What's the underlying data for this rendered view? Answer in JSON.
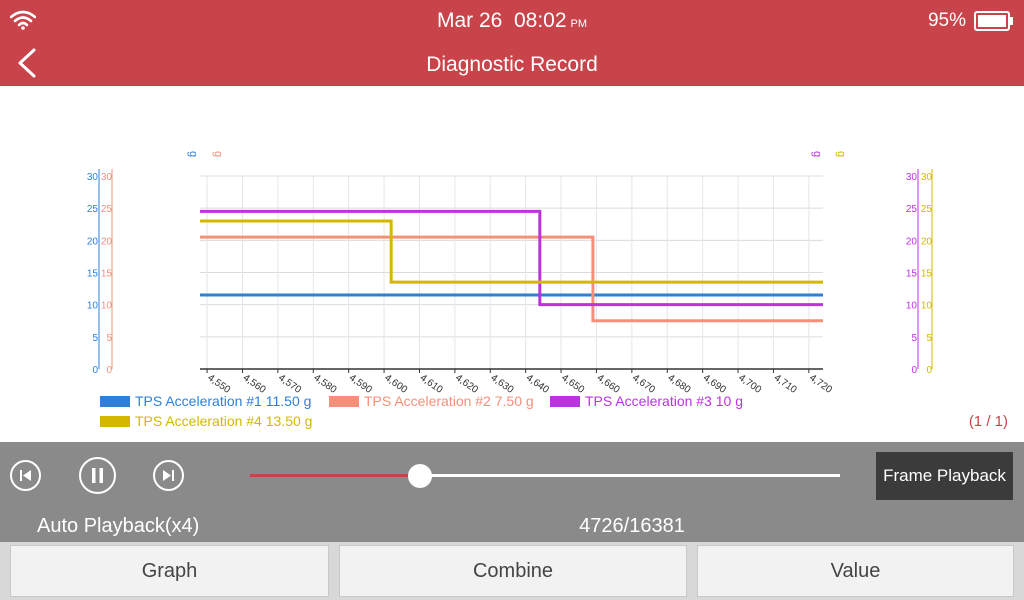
{
  "status_bar": {
    "date": "Mar 26",
    "time": "08:02",
    "ampm": "PM",
    "battery": "95%",
    "wifi_icon": "wifi-icon",
    "battery_icon": "battery-icon"
  },
  "header": {
    "title": "Diagnostic Record",
    "back_icon": "chevron-left-icon"
  },
  "chart_data": {
    "type": "line",
    "ylim": [
      0,
      30
    ],
    "xlim": [
      4548,
      4724
    ],
    "y_ticks": [
      0,
      5,
      10,
      15,
      20,
      25,
      30
    ],
    "x_ticks": [
      4550,
      4560,
      4570,
      4580,
      4590,
      4600,
      4610,
      4620,
      4630,
      4640,
      4650,
      4660,
      4670,
      4680,
      4690,
      4700,
      4710,
      4720
    ],
    "x_tick_labels": [
      "4,550",
      "4,560",
      "4,570",
      "4,580",
      "4,590",
      "4,600",
      "4,610",
      "4,620",
      "4,630",
      "4,640",
      "4,650",
      "4,660",
      "4,670",
      "4,680",
      "4,690",
      "4,700",
      "4,710",
      "4,720"
    ],
    "unit": "g",
    "grid": true,
    "series": [
      {
        "name": "TPS Acceleration #1",
        "value_label": "11.50 g",
        "color": "#2f7fd8",
        "x": [
          4548,
          4724
        ],
        "y": [
          11.5,
          11.5
        ]
      },
      {
        "name": "TPS Acceleration #2",
        "value_label": "7.50 g",
        "color": "#f4907a",
        "x": [
          4548,
          4659,
          4659,
          4724
        ],
        "y": [
          20.5,
          20.5,
          7.5,
          7.5
        ]
      },
      {
        "name": "TPS Acceleration #3",
        "value_label": "10 g",
        "color": "#bb33e0",
        "x": [
          4548,
          4644,
          4644,
          4724
        ],
        "y": [
          24.5,
          24.5,
          10,
          10
        ]
      },
      {
        "name": "TPS Acceleration #4",
        "value_label": "13.50 g",
        "color": "#d4b800",
        "x": [
          4548,
          4602,
          4602,
          4724
        ],
        "y": [
          23,
          23,
          13.5,
          13.5
        ]
      }
    ],
    "axes": {
      "left": [
        {
          "series": 0,
          "color": "#2f7fd8"
        },
        {
          "series": 1,
          "color": "#f4907a"
        }
      ],
      "right": [
        {
          "series": 2,
          "color": "#bb33e0"
        },
        {
          "series": 3,
          "color": "#d4b800"
        }
      ]
    }
  },
  "page_indicator": "(1 / 1)",
  "playback": {
    "prev_icon": "skip-previous-icon",
    "pause_icon": "pause-icon",
    "next_icon": "skip-next-icon",
    "progress": 0.2885,
    "frame_button": "Frame Playback",
    "auto_label": "Auto Playback(x4)",
    "counter": "4726/16381"
  },
  "tabs": [
    {
      "label": "Graph"
    },
    {
      "label": "Combine"
    },
    {
      "label": "Value"
    }
  ]
}
